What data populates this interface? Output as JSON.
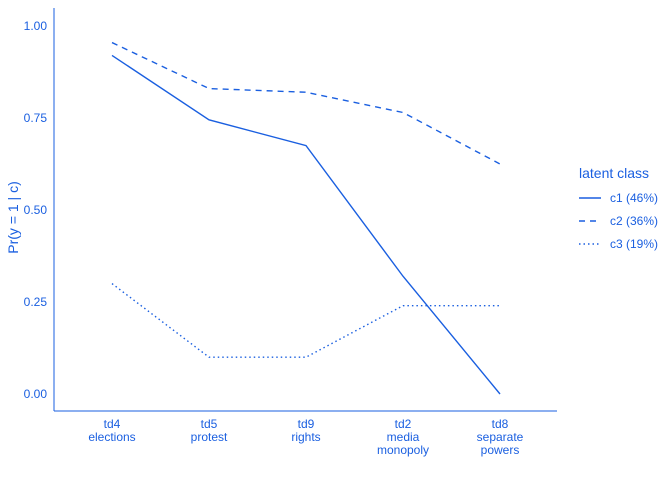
{
  "chart_data": {
    "type": "line",
    "ylabel": "Pr(y = 1 | c)",
    "xlabel": "",
    "ylim": [
      0,
      1
    ],
    "yticks": [
      0,
      0.25,
      0.5,
      0.75,
      1
    ],
    "ytick_labels": [
      "0.00",
      "0.25",
      "0.50",
      "0.75",
      "1.00"
    ],
    "categories": [
      [
        "td4",
        "elections"
      ],
      [
        "td5",
        "protest"
      ],
      [
        "td9",
        "rights"
      ],
      [
        "td2",
        "media",
        "monopoly"
      ],
      [
        "td8",
        "separate",
        "powers"
      ]
    ],
    "legend": {
      "title": "latent class",
      "position": "right"
    },
    "grid": false,
    "series": [
      {
        "name": "c1 (46%)",
        "style": "solid",
        "values": [
          0.92,
          0.745,
          0.675,
          0.32,
          0.0
        ]
      },
      {
        "name": "c2 (36%)",
        "style": "dashed",
        "values": [
          0.955,
          0.83,
          0.82,
          0.765,
          0.625
        ]
      },
      {
        "name": "c3 (19%)",
        "style": "dotted",
        "values": [
          0.3,
          0.1,
          0.1,
          0.24,
          0.24
        ]
      }
    ],
    "color": "#1a5fe0"
  }
}
